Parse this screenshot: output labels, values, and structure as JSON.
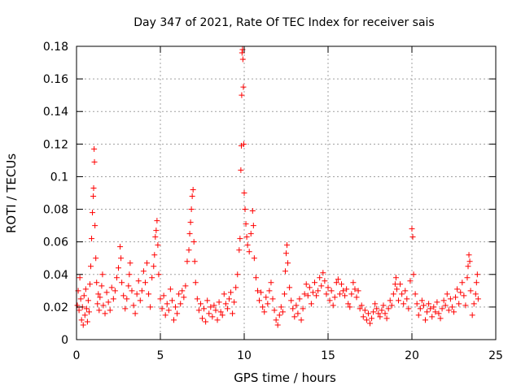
{
  "chart_data": {
    "type": "scatter",
    "title": "Day 347 of 2021, Rate Of TEC Index for receiver sais",
    "xlabel": "GPS time / hours",
    "ylabel": "ROTI / TECUs",
    "xlim": [
      0,
      25
    ],
    "ylim": [
      0,
      0.18
    ],
    "xticks": [
      0,
      5,
      10,
      15,
      20,
      25
    ],
    "xtick_labels": [
      "0",
      "5",
      "10",
      "15",
      "20",
      "25"
    ],
    "yticks": [
      0,
      0.02,
      0.04,
      0.06,
      0.08,
      0.1,
      0.12,
      0.14,
      0.16,
      0.18
    ],
    "ytick_labels": [
      "0",
      "0.02",
      "0.04",
      "0.06",
      "0.08",
      "0.1",
      "0.12",
      "0.14",
      "0.16",
      "0.18"
    ],
    "grid": true,
    "marker": "+",
    "color": "#ff0000",
    "series": [
      {
        "name": "ROTI",
        "points": [
          [
            0.05,
            0.021
          ],
          [
            0.1,
            0.03
          ],
          [
            0.15,
            0.018
          ],
          [
            0.2,
            0.038
          ],
          [
            0.25,
            0.025
          ],
          [
            0.3,
            0.012
          ],
          [
            0.35,
            0.02
          ],
          [
            0.4,
            0.009
          ],
          [
            0.45,
            0.027
          ],
          [
            0.5,
            0.015
          ],
          [
            0.55,
            0.031
          ],
          [
            0.6,
            0.019
          ],
          [
            0.65,
            0.011
          ],
          [
            0.7,
            0.024
          ],
          [
            0.75,
            0.017
          ],
          [
            0.8,
            0.034
          ],
          [
            0.85,
            0.045
          ],
          [
            0.9,
            0.062
          ],
          [
            0.95,
            0.078
          ],
          [
            1.0,
            0.088
          ],
          [
            1.02,
            0.093
          ],
          [
            1.05,
            0.117
          ],
          [
            1.07,
            0.109
          ],
          [
            1.1,
            0.07
          ],
          [
            1.15,
            0.05
          ],
          [
            1.2,
            0.035
          ],
          [
            1.25,
            0.022
          ],
          [
            1.3,
            0.028
          ],
          [
            1.35,
            0.018
          ],
          [
            1.4,
            0.026
          ],
          [
            1.5,
            0.033
          ],
          [
            1.55,
            0.04
          ],
          [
            1.6,
            0.021
          ],
          [
            1.7,
            0.016
          ],
          [
            1.8,
            0.029
          ],
          [
            1.9,
            0.023
          ],
          [
            2.0,
            0.018
          ],
          [
            2.1,
            0.032
          ],
          [
            2.2,
            0.025
          ],
          [
            2.3,
            0.03
          ],
          [
            2.4,
            0.038
          ],
          [
            2.5,
            0.044
          ],
          [
            2.6,
            0.057
          ],
          [
            2.65,
            0.05
          ],
          [
            2.7,
            0.035
          ],
          [
            2.8,
            0.027
          ],
          [
            2.9,
            0.019
          ],
          [
            3.0,
            0.025
          ],
          [
            3.1,
            0.033
          ],
          [
            3.15,
            0.04
          ],
          [
            3.2,
            0.047
          ],
          [
            3.3,
            0.03
          ],
          [
            3.4,
            0.021
          ],
          [
            3.5,
            0.016
          ],
          [
            3.6,
            0.028
          ],
          [
            3.7,
            0.036
          ],
          [
            3.8,
            0.024
          ],
          [
            3.9,
            0.03
          ],
          [
            4.0,
            0.042
          ],
          [
            4.1,
            0.035
          ],
          [
            4.2,
            0.047
          ],
          [
            4.3,
            0.028
          ],
          [
            4.4,
            0.02
          ],
          [
            4.5,
            0.038
          ],
          [
            4.6,
            0.045
          ],
          [
            4.65,
            0.052
          ],
          [
            4.7,
            0.063
          ],
          [
            4.75,
            0.067
          ],
          [
            4.8,
            0.073
          ],
          [
            4.85,
            0.058
          ],
          [
            4.9,
            0.04
          ],
          [
            5.0,
            0.025
          ],
          [
            5.1,
            0.019
          ],
          [
            5.2,
            0.027
          ],
          [
            5.3,
            0.015
          ],
          [
            5.4,
            0.022
          ],
          [
            5.5,
            0.018
          ],
          [
            5.6,
            0.031
          ],
          [
            5.7,
            0.024
          ],
          [
            5.8,
            0.012
          ],
          [
            5.9,
            0.02
          ],
          [
            6.0,
            0.016
          ],
          [
            6.1,
            0.028
          ],
          [
            6.2,
            0.022
          ],
          [
            6.3,
            0.03
          ],
          [
            6.4,
            0.026
          ],
          [
            6.5,
            0.033
          ],
          [
            6.6,
            0.048
          ],
          [
            6.7,
            0.055
          ],
          [
            6.75,
            0.065
          ],
          [
            6.8,
            0.072
          ],
          [
            6.85,
            0.08
          ],
          [
            6.9,
            0.088
          ],
          [
            6.95,
            0.092
          ],
          [
            7.0,
            0.06
          ],
          [
            7.05,
            0.048
          ],
          [
            7.1,
            0.035
          ],
          [
            7.2,
            0.025
          ],
          [
            7.3,
            0.018
          ],
          [
            7.4,
            0.022
          ],
          [
            7.5,
            0.013
          ],
          [
            7.6,
            0.019
          ],
          [
            7.7,
            0.011
          ],
          [
            7.8,
            0.024
          ],
          [
            7.9,
            0.016
          ],
          [
            8.0,
            0.02
          ],
          [
            8.1,
            0.014
          ],
          [
            8.2,
            0.021
          ],
          [
            8.3,
            0.018
          ],
          [
            8.4,
            0.012
          ],
          [
            8.5,
            0.023
          ],
          [
            8.6,
            0.017
          ],
          [
            8.7,
            0.015
          ],
          [
            8.8,
            0.028
          ],
          [
            8.9,
            0.022
          ],
          [
            9.0,
            0.019
          ],
          [
            9.1,
            0.025
          ],
          [
            9.2,
            0.029
          ],
          [
            9.3,
            0.016
          ],
          [
            9.4,
            0.023
          ],
          [
            9.5,
            0.032
          ],
          [
            9.6,
            0.04
          ],
          [
            9.7,
            0.055
          ],
          [
            9.75,
            0.062
          ],
          [
            9.8,
            0.104
          ],
          [
            9.83,
            0.119
          ],
          [
            9.85,
            0.15
          ],
          [
            9.87,
            0.176
          ],
          [
            9.9,
            0.178
          ],
          [
            9.92,
            0.172
          ],
          [
            9.95,
            0.155
          ],
          [
            9.97,
            0.12
          ],
          [
            10.0,
            0.09
          ],
          [
            10.05,
            0.08
          ],
          [
            10.1,
            0.071
          ],
          [
            10.15,
            0.063
          ],
          [
            10.2,
            0.058
          ],
          [
            10.3,
            0.054
          ],
          [
            10.4,
            0.065
          ],
          [
            10.5,
            0.079
          ],
          [
            10.55,
            0.07
          ],
          [
            10.6,
            0.05
          ],
          [
            10.7,
            0.038
          ],
          [
            10.8,
            0.03
          ],
          [
            10.9,
            0.024
          ],
          [
            11.0,
            0.029
          ],
          [
            11.1,
            0.02
          ],
          [
            11.2,
            0.017
          ],
          [
            11.3,
            0.026
          ],
          [
            11.4,
            0.022
          ],
          [
            11.5,
            0.03
          ],
          [
            11.6,
            0.035
          ],
          [
            11.7,
            0.025
          ],
          [
            11.8,
            0.018
          ],
          [
            11.9,
            0.012
          ],
          [
            12.0,
            0.009
          ],
          [
            12.1,
            0.015
          ],
          [
            12.2,
            0.02
          ],
          [
            12.3,
            0.017
          ],
          [
            12.4,
            0.028
          ],
          [
            12.45,
            0.042
          ],
          [
            12.5,
            0.053
          ],
          [
            12.55,
            0.058
          ],
          [
            12.6,
            0.047
          ],
          [
            12.7,
            0.032
          ],
          [
            12.8,
            0.024
          ],
          [
            12.9,
            0.019
          ],
          [
            13.0,
            0.014
          ],
          [
            13.1,
            0.021
          ],
          [
            13.2,
            0.016
          ],
          [
            13.3,
            0.025
          ],
          [
            13.4,
            0.012
          ],
          [
            13.5,
            0.019
          ],
          [
            13.6,
            0.028
          ],
          [
            13.7,
            0.034
          ],
          [
            13.8,
            0.027
          ],
          [
            13.9,
            0.032
          ],
          [
            14.0,
            0.022
          ],
          [
            14.1,
            0.029
          ],
          [
            14.2,
            0.035
          ],
          [
            14.3,
            0.027
          ],
          [
            14.4,
            0.03
          ],
          [
            14.5,
            0.038
          ],
          [
            14.6,
            0.033
          ],
          [
            14.7,
            0.041
          ],
          [
            14.8,
            0.036
          ],
          [
            14.9,
            0.028
          ],
          [
            15.0,
            0.032
          ],
          [
            15.1,
            0.024
          ],
          [
            15.2,
            0.03
          ],
          [
            15.3,
            0.021
          ],
          [
            15.4,
            0.026
          ],
          [
            15.5,
            0.035
          ],
          [
            15.6,
            0.037
          ],
          [
            15.7,
            0.028
          ],
          [
            15.8,
            0.034
          ],
          [
            15.9,
            0.03
          ],
          [
            16.0,
            0.027
          ],
          [
            16.1,
            0.031
          ],
          [
            16.2,
            0.022
          ],
          [
            16.3,
            0.02
          ],
          [
            16.4,
            0.028
          ],
          [
            16.5,
            0.035
          ],
          [
            16.6,
            0.031
          ],
          [
            16.7,
            0.026
          ],
          [
            16.8,
            0.03
          ],
          [
            16.9,
            0.019
          ],
          [
            17.0,
            0.021
          ],
          [
            17.1,
            0.014
          ],
          [
            17.2,
            0.018
          ],
          [
            17.3,
            0.012
          ],
          [
            17.4,
            0.016
          ],
          [
            17.5,
            0.01
          ],
          [
            17.6,
            0.013
          ],
          [
            17.7,
            0.017
          ],
          [
            17.8,
            0.022
          ],
          [
            17.9,
            0.019
          ],
          [
            18.0,
            0.016
          ],
          [
            18.1,
            0.014
          ],
          [
            18.2,
            0.018
          ],
          [
            18.3,
            0.021
          ],
          [
            18.4,
            0.016
          ],
          [
            18.5,
            0.013
          ],
          [
            18.6,
            0.019
          ],
          [
            18.7,
            0.024
          ],
          [
            18.8,
            0.021
          ],
          [
            18.9,
            0.028
          ],
          [
            19.0,
            0.034
          ],
          [
            19.05,
            0.038
          ],
          [
            19.1,
            0.031
          ],
          [
            19.2,
            0.024
          ],
          [
            19.3,
            0.034
          ],
          [
            19.4,
            0.028
          ],
          [
            19.5,
            0.022
          ],
          [
            19.6,
            0.03
          ],
          [
            19.7,
            0.025
          ],
          [
            19.8,
            0.019
          ],
          [
            19.9,
            0.036
          ],
          [
            20.0,
            0.068
          ],
          [
            20.05,
            0.063
          ],
          [
            20.1,
            0.04
          ],
          [
            20.2,
            0.028
          ],
          [
            20.3,
            0.022
          ],
          [
            20.4,
            0.015
          ],
          [
            20.5,
            0.019
          ],
          [
            20.6,
            0.024
          ],
          [
            20.7,
            0.021
          ],
          [
            20.8,
            0.012
          ],
          [
            20.9,
            0.017
          ],
          [
            21.0,
            0.022
          ],
          [
            21.1,
            0.019
          ],
          [
            21.2,
            0.014
          ],
          [
            21.3,
            0.02
          ],
          [
            21.4,
            0.017
          ],
          [
            21.5,
            0.023
          ],
          [
            21.6,
            0.016
          ],
          [
            21.7,
            0.013
          ],
          [
            21.8,
            0.019
          ],
          [
            21.9,
            0.024
          ],
          [
            22.0,
            0.021
          ],
          [
            22.1,
            0.028
          ],
          [
            22.2,
            0.018
          ],
          [
            22.3,
            0.025
          ],
          [
            22.4,
            0.02
          ],
          [
            22.5,
            0.017
          ],
          [
            22.6,
            0.026
          ],
          [
            22.7,
            0.031
          ],
          [
            22.8,
            0.022
          ],
          [
            22.9,
            0.029
          ],
          [
            23.0,
            0.035
          ],
          [
            23.1,
            0.027
          ],
          [
            23.2,
            0.021
          ],
          [
            23.3,
            0.038
          ],
          [
            23.35,
            0.045
          ],
          [
            23.4,
            0.052
          ],
          [
            23.45,
            0.048
          ],
          [
            23.5,
            0.03
          ],
          [
            23.6,
            0.015
          ],
          [
            23.7,
            0.022
          ],
          [
            23.8,
            0.028
          ],
          [
            23.85,
            0.035
          ],
          [
            23.9,
            0.04
          ],
          [
            23.95,
            0.025
          ]
        ]
      }
    ]
  }
}
